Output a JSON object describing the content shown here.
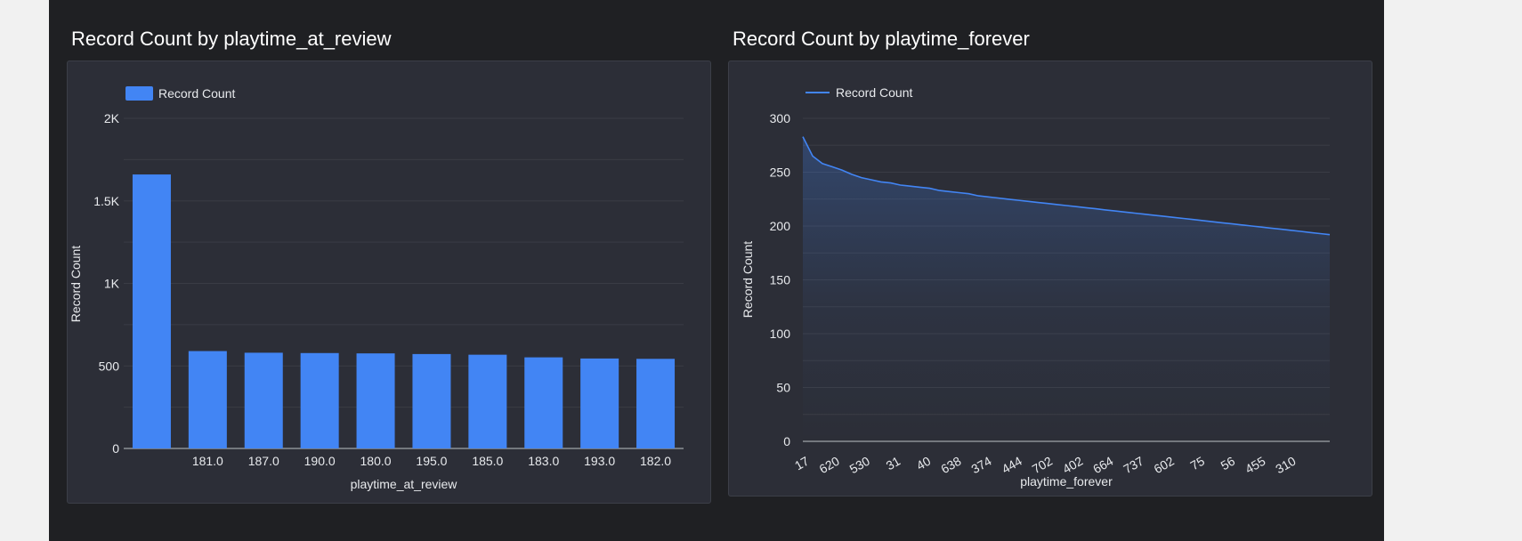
{
  "charts": [
    {
      "title": "Record Count by playtime_at_review",
      "legend_label": "Record Count",
      "xlabel": "playtime_at_review",
      "ylabel": "Record Count",
      "yticks": [
        "0",
        "500",
        "1K",
        "1.5K",
        "2K"
      ]
    },
    {
      "title": "Record Count by playtime_forever",
      "legend_label": "Record Count",
      "xlabel": "playtime_forever",
      "ylabel": "Record Count",
      "yticks": [
        "0",
        "50",
        "100",
        "150",
        "200",
        "250",
        "300"
      ]
    }
  ],
  "colors": {
    "series": "#4285f4",
    "text": "#e8eaed",
    "grid": "#3a3c45",
    "axis": "#bdc1c6"
  },
  "chart_data": [
    {
      "type": "bar",
      "title": "Record Count by playtime_at_review",
      "xlabel": "playtime_at_review",
      "ylabel": "Record Count",
      "ylim": [
        0,
        2000
      ],
      "legend": "top-left",
      "grid": true,
      "categories": [
        "",
        "181.0",
        "187.0",
        "190.0",
        "180.0",
        "195.0",
        "185.0",
        "183.0",
        "193.0",
        "182.0"
      ],
      "series": [
        {
          "name": "Record Count",
          "values": [
            1660,
            590,
            580,
            578,
            576,
            572,
            568,
            552,
            545,
            543
          ]
        }
      ]
    },
    {
      "type": "area",
      "title": "Record Count by playtime_forever",
      "xlabel": "playtime_forever",
      "ylabel": "Record Count",
      "ylim": [
        0,
        300
      ],
      "legend": "top-left",
      "grid": true,
      "x_ticks": [
        "17",
        "620",
        "530",
        "31",
        "40",
        "638",
        "374",
        "444",
        "702",
        "402",
        "664",
        "737",
        "602",
        "75",
        "56",
        "455",
        "310"
      ],
      "series": [
        {
          "name": "Record Count",
          "values": [
            283,
            265,
            258,
            255,
            252,
            248,
            245,
            243,
            241,
            240,
            238,
            237,
            236,
            235,
            233,
            232,
            231,
            230,
            228,
            227,
            226,
            225,
            224,
            223,
            222,
            221,
            220,
            219,
            218,
            217,
            216,
            215,
            214,
            213,
            212,
            211,
            210,
            209,
            208,
            207,
            206,
            205,
            204,
            203,
            202,
            201,
            200,
            199,
            198,
            197,
            196,
            195,
            194,
            193,
            192
          ]
        }
      ]
    }
  ]
}
